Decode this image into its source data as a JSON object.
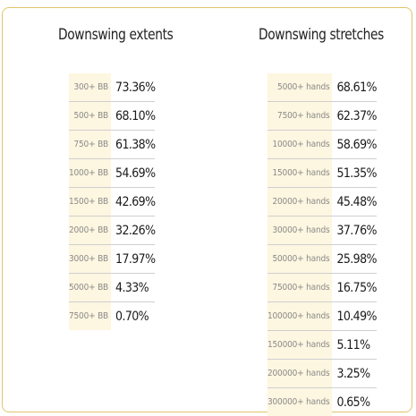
{
  "extents": {
    "title": "Downswing extents",
    "rows": [
      {
        "label": "300+ BB",
        "value": "73.36%"
      },
      {
        "label": "500+ BB",
        "value": "68.10%"
      },
      {
        "label": "750+ BB",
        "value": "61.38%"
      },
      {
        "label": "1000+ BB",
        "value": "54.69%"
      },
      {
        "label": "1500+ BB",
        "value": "42.69%"
      },
      {
        "label": "2000+ BB",
        "value": "32.26%"
      },
      {
        "label": "3000+ BB",
        "value": "17.97%"
      },
      {
        "label": "5000+ BB",
        "value": "4.33%"
      },
      {
        "label": "7500+ BB",
        "value": "0.70%"
      }
    ]
  },
  "stretches": {
    "title": "Downswing stretches",
    "rows": [
      {
        "label": "5000+ hands",
        "value": "68.61%"
      },
      {
        "label": "7500+ hands",
        "value": "62.37%"
      },
      {
        "label": "10000+ hands",
        "value": "58.69%"
      },
      {
        "label": "15000+ hands",
        "value": "51.35%"
      },
      {
        "label": "20000+ hands",
        "value": "45.48%"
      },
      {
        "label": "30000+ hands",
        "value": "37.76%"
      },
      {
        "label": "50000+ hands",
        "value": "25.98%"
      },
      {
        "label": "75000+ hands",
        "value": "16.75%"
      },
      {
        "label": "100000+ hands",
        "value": "10.49%"
      },
      {
        "label": "150000+ hands",
        "value": "5.11%"
      },
      {
        "label": "200000+ hands",
        "value": "3.25%"
      },
      {
        "label": "300000+ hands",
        "value": "0.65%"
      }
    ]
  },
  "colors": {
    "card_border": "#e2c46a",
    "label_cell_bg": "#fdf6e0",
    "label_text": "#8a8a8a",
    "value_text": "#1a1a1a"
  }
}
